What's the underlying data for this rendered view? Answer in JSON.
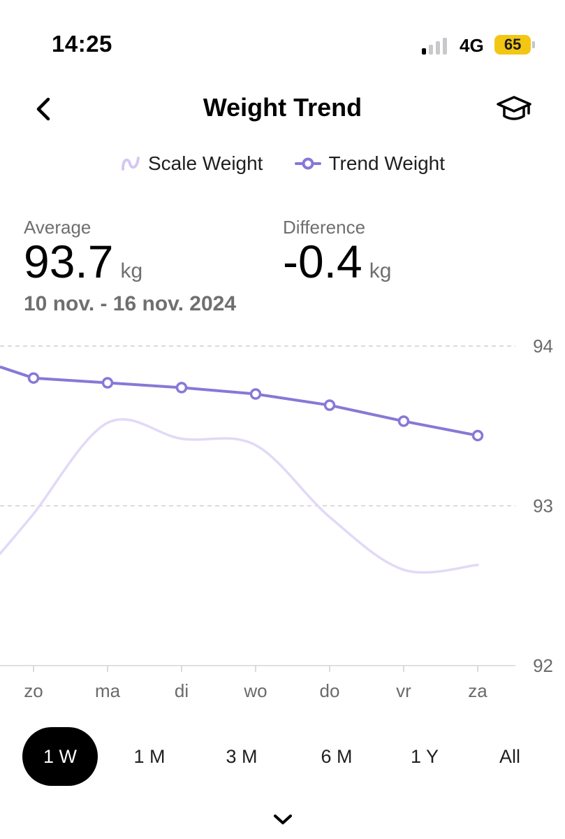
{
  "status_bar": {
    "time": "14:25",
    "network": "4G",
    "battery": "65"
  },
  "header": {
    "title": "Weight Trend",
    "back_icon": "chevron-left-icon",
    "learn_icon": "graduation-cap-icon"
  },
  "legend": [
    {
      "label": "Scale Weight",
      "icon": "squiggle-icon",
      "color": "#d4c8f2"
    },
    {
      "label": "Trend Weight",
      "icon": "line-dot-icon",
      "color": "#8878d6"
    }
  ],
  "stats": {
    "average": {
      "label": "Average",
      "value": "93.7",
      "unit": "kg"
    },
    "difference": {
      "label": "Difference",
      "value": "-0.4",
      "unit": "kg"
    },
    "date_range": "10 nov. - 16 nov. 2024"
  },
  "chart_data": {
    "type": "line",
    "categories": [
      "zo",
      "ma",
      "di",
      "wo",
      "do",
      "vr",
      "za"
    ],
    "y_ticks": [
      "94",
      "93",
      "92"
    ],
    "ylim": [
      92,
      94
    ],
    "series": [
      {
        "name": "Trend Weight",
        "color": "#8878d6",
        "lead_in": 93.87,
        "values": [
          93.8,
          93.77,
          93.74,
          93.7,
          93.63,
          93.53,
          93.44
        ]
      },
      {
        "name": "Scale Weight",
        "color": "#e2d9f7",
        "lead_in": 92.7,
        "values": [
          92.95,
          93.52,
          93.42,
          93.38,
          92.93,
          92.6,
          92.63
        ]
      }
    ]
  },
  "range_tabs": [
    "1 W",
    "1 M",
    "3 M",
    "6 M",
    "1 Y",
    "All"
  ],
  "active_tab": "1 W",
  "footer": {
    "expand_icon": "chevron-down-icon"
  }
}
